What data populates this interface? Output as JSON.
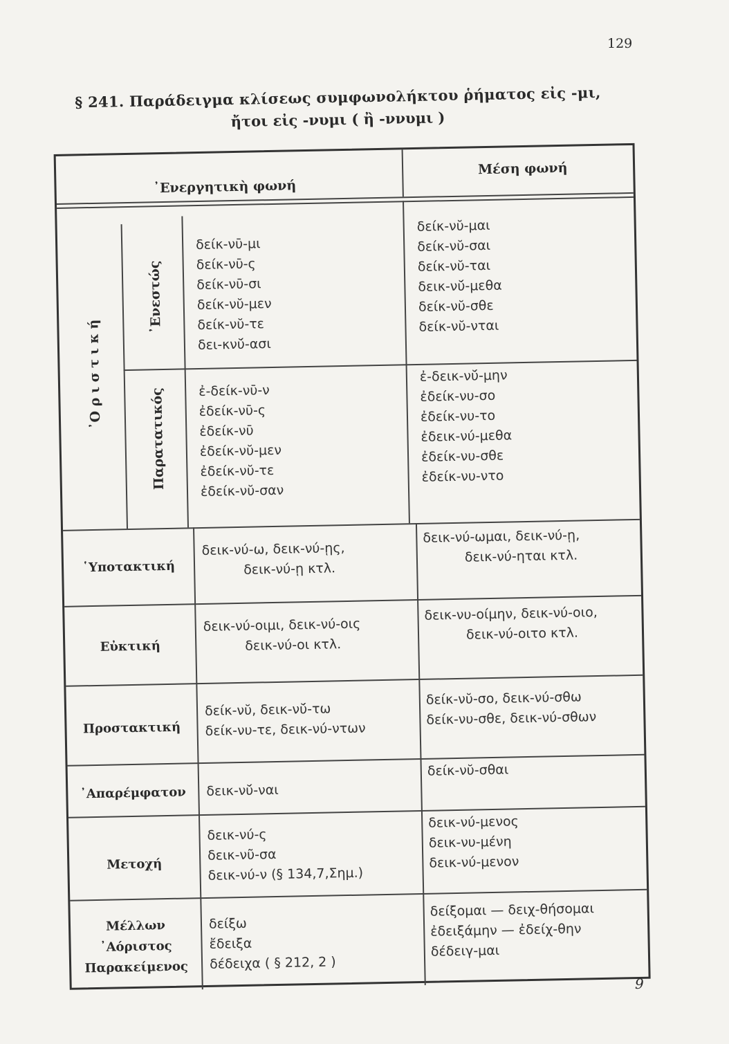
{
  "page_number": "129",
  "title": {
    "line1": "§ 241. Παράδειγμα κλίσεως συμφωνολήκτου ῥήματος εἰς -μι,",
    "line2": "ἤτοι εἰς -νυμι ( ἢ -ννυμι )"
  },
  "headers": {
    "active": "᾿Ενεργητικὴ φωνή",
    "middle": "Μέση φωνή"
  },
  "indicative": {
    "label": "᾿Ο ρ ι σ τ ι κ ή",
    "present": {
      "label": "᾿Ενεστώς",
      "active": [
        "δείκ-νῡ-μι",
        "δείκ-νῡ-ς",
        "δείκ-νῡ-σι",
        "δείκ-νῠ-μεν",
        "δείκ-νῠ-τε",
        "δει-κνῠ́-ασι"
      ],
      "middle": [
        "δείκ-νῠ-μαι",
        "δείκ-νῠ-σαι",
        "δείκ-νῠ-ται",
        "δεικ-νῠ́-μεθα",
        "δείκ-νῠ-σθε",
        "δείκ-νῠ-νται"
      ]
    },
    "imperfect": {
      "label": "Παρατατικός",
      "active": [
        "ἐ-δείκ-νῡ-ν",
        "ἐδείκ-νῡ-ς",
        "ἐδείκ-νῡ",
        "ἐδείκ-νῠ-μεν",
        "ἐδείκ-νῠ-τε",
        "ἐδείκ-νῠ-σαν"
      ],
      "middle": [
        "ἐ-δεικ-νῠ́-μην",
        "ἐδείκ-νυ-σο",
        "ἐδείκ-νυ-το",
        "ἐδεικ-νύ-μεθα",
        "ἐδείκ-νυ-σθε",
        "ἐδείκ-νυ-ντο"
      ]
    }
  },
  "rows": [
    {
      "label": "῾Υποτακτική",
      "active": [
        "δεικ-νύ-ω, δεικ-νύ-ῃς,",
        "δεικ-νύ-ῃ κτλ."
      ],
      "middle": [
        "δεικ-νύ-ωμαι, δεικ-νύ-ῃ,",
        "δεικ-νύ-ηται κτλ."
      ]
    },
    {
      "label": "Εὐκτική",
      "active": [
        "δεικ-νύ-οιμι, δεικ-νύ-οις",
        "δεικ-νύ-οι κτλ."
      ],
      "middle": [
        "δεικ-νυ-οίμην, δεικ-νύ-οιο,",
        "δεικ-νύ-οιτο κτλ."
      ]
    },
    {
      "label": "Προστακτική",
      "active": [
        "δείκ-νῠ, δεικ-νῠ́-τω",
        "δείκ-νυ-τε, δεικ-νύ-ντων"
      ],
      "middle": [
        "δείκ-νῠ-σο, δεικ-νύ-σθω",
        "δείκ-νυ-σθε, δεικ-νύ-σθων"
      ]
    },
    {
      "label": "᾿Απαρέμφατον",
      "active": [
        "δεικ-νῠ́-ναι"
      ],
      "middle": [
        "δείκ-νῠ-σθαι"
      ]
    },
    {
      "label": "Μετοχή",
      "active": [
        "δεικ-νύ-ς",
        "δεικ-νῦ-σα",
        "δεικ-νύ-ν (§ 134,7,Σημ.)"
      ],
      "middle": [
        "δεικ-νύ-μενος",
        "δεικ-νυ-μένη",
        "δεικ-νύ-μενον"
      ]
    },
    {
      "label": [
        "Μέλλων",
        "᾿Αόριστος",
        "Παρακείμενος"
      ],
      "active": [
        "δείξω",
        "ἔδειξα",
        "δέδειχα  ( § 212, 2 )"
      ],
      "middle": [
        "δείξομαι — δειχ-θήσομαι",
        "ἐδειξάμην — ἐδείχ-θην",
        "δέδειγ-μαι"
      ]
    }
  ],
  "signature_mark": "9"
}
